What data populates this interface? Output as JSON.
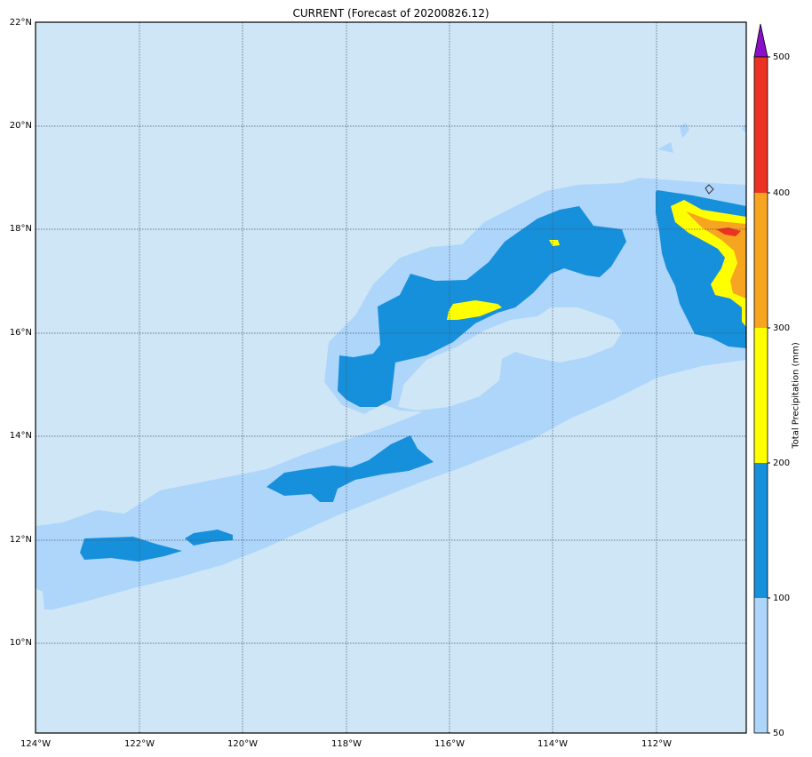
{
  "title": "CURRENT (Forecast of 20200826.12)",
  "lat_labels": [
    "22°N",
    "20°N",
    "18°N",
    "16°N",
    "14°N",
    "12°N",
    "10°N"
  ],
  "lon_labels": [
    "124°W",
    "122°W",
    "120°W",
    "118°W",
    "116°W",
    "114°W",
    "112°W"
  ],
  "colorbar": {
    "title": "Total Precipitation (mm)",
    "ticks": [
      "500",
      "400",
      "300",
      "200",
      "100",
      "50"
    ],
    "levels": [
      {
        "min": 50,
        "max": 100,
        "color": "#aed6fb"
      },
      {
        "min": 100,
        "max": 200,
        "color": "#1790dc"
      },
      {
        "min": 200,
        "max": 300,
        "color": "#ffff00"
      },
      {
        "min": 300,
        "max": 400,
        "color": "#f7a520"
      },
      {
        "min": 400,
        "max": 500,
        "color": "#ec3222"
      },
      {
        "min": 500,
        "max": null,
        "color": "#8b0ec8"
      }
    ]
  },
  "map": {
    "background_color": "#cfe6f6",
    "lat_range": [
      "8.3°N",
      "22°N"
    ],
    "lon_range": [
      "124°W",
      "110.4°W"
    ],
    "gridlines": true
  }
}
